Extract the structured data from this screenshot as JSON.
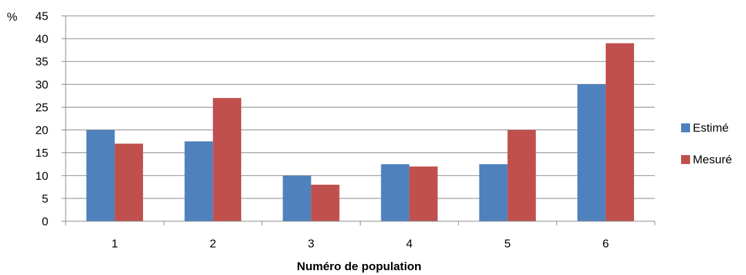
{
  "chart_data": {
    "type": "bar",
    "categories": [
      "1",
      "2",
      "3",
      "4",
      "5",
      "6"
    ],
    "series": [
      {
        "name": "Estimé",
        "values": [
          20,
          17.5,
          10,
          12.5,
          12.5,
          30
        ],
        "color": "#4F81BD"
      },
      {
        "name": "Mesuré",
        "values": [
          17,
          27,
          8,
          12,
          20,
          39
        ],
        "color": "#C0504D"
      }
    ],
    "title": "",
    "xlabel": "Numéro de population",
    "ylabel": "%",
    "ylim": [
      0,
      45
    ],
    "yticks": [
      0,
      5,
      10,
      15,
      20,
      25,
      30,
      35,
      40,
      45
    ],
    "grid": true,
    "legend_position": "right"
  }
}
